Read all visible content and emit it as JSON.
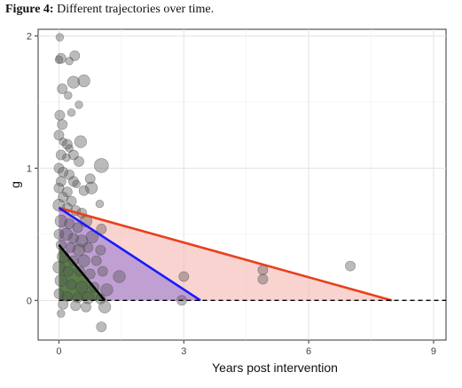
{
  "caption": {
    "label": "Figure 4:",
    "text": "Different trajectories over time."
  },
  "chart_data": {
    "type": "scatter",
    "title": "",
    "xlabel": "Years post intervention",
    "ylabel": "g",
    "xlim": [
      -0.5,
      9.3
    ],
    "ylim": [
      -0.3,
      2.05
    ],
    "x_ticks": [
      0,
      3,
      6,
      9
    ],
    "y_ticks": [
      0,
      1,
      2
    ],
    "x_tick_labels": [
      "0",
      "3",
      "6",
      "9"
    ],
    "y_tick_labels": [
      "0",
      "1",
      "2"
    ],
    "grid": true,
    "reference_line": {
      "y": 0,
      "style": "dashed",
      "color": "#000000"
    },
    "trajectories": [
      {
        "color": "#e8401c",
        "fill": "#f4b6b0",
        "start": [
          0,
          0.7
        ],
        "end": [
          8,
          0
        ]
      },
      {
        "color": "#1a1aff",
        "fill": "#9b7fd4",
        "start": [
          0,
          0.7
        ],
        "end": [
          3.4,
          0
        ]
      },
      {
        "color": "#000000",
        "fill": "#4f7a3a",
        "start": [
          0,
          0.42
        ],
        "end": [
          1.1,
          0
        ]
      }
    ],
    "points": [
      {
        "x": 0.02,
        "y": 1.99,
        "s": 2
      },
      {
        "x": 0.05,
        "y": 1.83,
        "s": 3
      },
      {
        "x": 0.38,
        "y": 1.85,
        "s": 3
      },
      {
        "x": 0.25,
        "y": 1.81,
        "s": 2
      },
      {
        "x": 0.0,
        "y": 1.82,
        "s": 2
      },
      {
        "x": 0.35,
        "y": 1.65,
        "s": 4
      },
      {
        "x": 0.6,
        "y": 1.66,
        "s": 4
      },
      {
        "x": 0.08,
        "y": 1.6,
        "s": 3
      },
      {
        "x": 0.22,
        "y": 1.55,
        "s": 2
      },
      {
        "x": 0.48,
        "y": 1.48,
        "s": 2
      },
      {
        "x": 0.3,
        "y": 1.42,
        "s": 2
      },
      {
        "x": 0.02,
        "y": 1.4,
        "s": 3
      },
      {
        "x": 0.08,
        "y": 1.33,
        "s": 3
      },
      {
        "x": 0.0,
        "y": 1.25,
        "s": 3
      },
      {
        "x": 0.1,
        "y": 1.2,
        "s": 2
      },
      {
        "x": 0.2,
        "y": 1.18,
        "s": 3
      },
      {
        "x": 0.25,
        "y": 1.15,
        "s": 2
      },
      {
        "x": 0.52,
        "y": 1.2,
        "s": 4
      },
      {
        "x": 0.05,
        "y": 1.1,
        "s": 3
      },
      {
        "x": 0.35,
        "y": 1.1,
        "s": 3
      },
      {
        "x": 0.18,
        "y": 1.08,
        "s": 2
      },
      {
        "x": 0.48,
        "y": 1.05,
        "s": 3
      },
      {
        "x": 1.02,
        "y": 1.02,
        "s": 5
      },
      {
        "x": 0.0,
        "y": 1.0,
        "s": 3
      },
      {
        "x": 0.1,
        "y": 0.97,
        "s": 3
      },
      {
        "x": 0.25,
        "y": 0.95,
        "s": 3
      },
      {
        "x": 0.05,
        "y": 0.9,
        "s": 3
      },
      {
        "x": 0.35,
        "y": 0.9,
        "s": 3
      },
      {
        "x": 0.75,
        "y": 0.92,
        "s": 3
      },
      {
        "x": 0.0,
        "y": 0.85,
        "s": 3
      },
      {
        "x": 0.2,
        "y": 0.82,
        "s": 3
      },
      {
        "x": 0.42,
        "y": 0.88,
        "s": 2
      },
      {
        "x": 0.78,
        "y": 0.85,
        "s": 4
      },
      {
        "x": 0.6,
        "y": 0.83,
        "s": 3
      },
      {
        "x": 0.1,
        "y": 0.78,
        "s": 3
      },
      {
        "x": 0.3,
        "y": 0.75,
        "s": 3
      },
      {
        "x": 0.98,
        "y": 0.73,
        "s": 2
      },
      {
        "x": 0.0,
        "y": 0.72,
        "s": 4
      },
      {
        "x": 0.2,
        "y": 0.7,
        "s": 3
      },
      {
        "x": 0.4,
        "y": 0.68,
        "s": 3
      },
      {
        "x": 0.55,
        "y": 0.66,
        "s": 3
      },
      {
        "x": 0.05,
        "y": 0.6,
        "s": 4
      },
      {
        "x": 0.25,
        "y": 0.58,
        "s": 3
      },
      {
        "x": 0.45,
        "y": 0.55,
        "s": 3
      },
      {
        "x": 0.65,
        "y": 0.6,
        "s": 4
      },
      {
        "x": 1.02,
        "y": 0.54,
        "s": 3
      },
      {
        "x": 0.0,
        "y": 0.5,
        "s": 3
      },
      {
        "x": 0.18,
        "y": 0.5,
        "s": 4
      },
      {
        "x": 0.35,
        "y": 0.47,
        "s": 3
      },
      {
        "x": 0.55,
        "y": 0.45,
        "s": 4
      },
      {
        "x": 0.8,
        "y": 0.48,
        "s": 4
      },
      {
        "x": 0.05,
        "y": 0.42,
        "s": 3
      },
      {
        "x": 0.28,
        "y": 0.4,
        "s": 3
      },
      {
        "x": 0.48,
        "y": 0.38,
        "s": 4
      },
      {
        "x": 0.7,
        "y": 0.4,
        "s": 3
      },
      {
        "x": 1.0,
        "y": 0.38,
        "s": 3
      },
      {
        "x": 0.1,
        "y": 0.33,
        "s": 4
      },
      {
        "x": 0.35,
        "y": 0.3,
        "s": 3
      },
      {
        "x": 0.6,
        "y": 0.3,
        "s": 4
      },
      {
        "x": 0.9,
        "y": 0.3,
        "s": 3
      },
      {
        "x": 0.0,
        "y": 0.25,
        "s": 4
      },
      {
        "x": 0.22,
        "y": 0.22,
        "s": 3
      },
      {
        "x": 0.5,
        "y": 0.22,
        "s": 3
      },
      {
        "x": 0.75,
        "y": 0.2,
        "s": 3
      },
      {
        "x": 1.05,
        "y": 0.22,
        "s": 3
      },
      {
        "x": 1.45,
        "y": 0.18,
        "s": 4
      },
      {
        "x": 0.05,
        "y": 0.15,
        "s": 4
      },
      {
        "x": 0.3,
        "y": 0.12,
        "s": 3
      },
      {
        "x": 0.55,
        "y": 0.1,
        "s": 4
      },
      {
        "x": 0.85,
        "y": 0.1,
        "s": 3
      },
      {
        "x": 1.15,
        "y": 0.08,
        "s": 4
      },
      {
        "x": 0.0,
        "y": 0.05,
        "s": 3
      },
      {
        "x": 0.2,
        "y": 0.03,
        "s": 3
      },
      {
        "x": 0.45,
        "y": 0.02,
        "s": 3
      },
      {
        "x": 0.7,
        "y": 0.02,
        "s": 4
      },
      {
        "x": 1.0,
        "y": 0.01,
        "s": 3
      },
      {
        "x": 0.1,
        "y": -0.03,
        "s": 3
      },
      {
        "x": 0.4,
        "y": -0.04,
        "s": 3
      },
      {
        "x": 0.65,
        "y": -0.05,
        "s": 3
      },
      {
        "x": 1.1,
        "y": -0.05,
        "s": 4
      },
      {
        "x": 0.05,
        "y": -0.1,
        "s": 2
      },
      {
        "x": 1.02,
        "y": -0.2,
        "s": 3
      },
      {
        "x": 3.0,
        "y": 0.18,
        "s": 3
      },
      {
        "x": 2.95,
        "y": 0.0,
        "s": 3
      },
      {
        "x": 4.9,
        "y": 0.23,
        "s": 3
      },
      {
        "x": 4.9,
        "y": 0.16,
        "s": 3
      },
      {
        "x": 7.0,
        "y": 0.26,
        "s": 3
      }
    ]
  }
}
